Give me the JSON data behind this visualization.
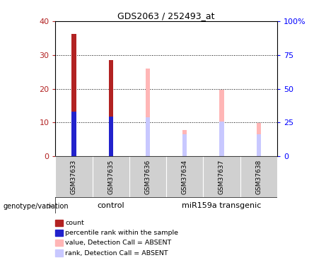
{
  "title": "GDS2063 / 252493_at",
  "samples": [
    "GSM37633",
    "GSM37635",
    "GSM37636",
    "GSM37634",
    "GSM37637",
    "GSM37638"
  ],
  "count_values": [
    36.2,
    28.5,
    0,
    0,
    0,
    0
  ],
  "percentile_values": [
    13.2,
    11.8,
    0,
    0,
    0,
    0
  ],
  "absent_value": [
    0,
    0,
    26.0,
    7.8,
    19.7,
    9.8
  ],
  "absent_rank": [
    0,
    0,
    11.5,
    6.5,
    10.2,
    6.5
  ],
  "ylim_left": [
    0,
    40
  ],
  "ylim_right": [
    0,
    100
  ],
  "yticks_left": [
    0,
    10,
    20,
    30,
    40
  ],
  "yticks_right": [
    0,
    25,
    50,
    75,
    100
  ],
  "ytick_labels_right": [
    "0",
    "25",
    "50",
    "75",
    "100%"
  ],
  "color_count": "#b22222",
  "color_percentile": "#2222cc",
  "color_absent_value": "#ffb6b6",
  "color_absent_rank": "#c8c8ff",
  "bar_width": 0.12,
  "background_color": "#ffffff",
  "plot_bg": "#ffffff",
  "legend_items": [
    {
      "label": "count",
      "color": "#b22222"
    },
    {
      "label": "percentile rank within the sample",
      "color": "#2222cc"
    },
    {
      "label": "value, Detection Call = ABSENT",
      "color": "#ffb6b6"
    },
    {
      "label": "rank, Detection Call = ABSENT",
      "color": "#c8c8ff"
    }
  ],
  "genotype_label": "genotype/variation",
  "group_control_label": "control",
  "group_transgenic_label": "miR159a transgenic",
  "green_color": "#66dd66"
}
